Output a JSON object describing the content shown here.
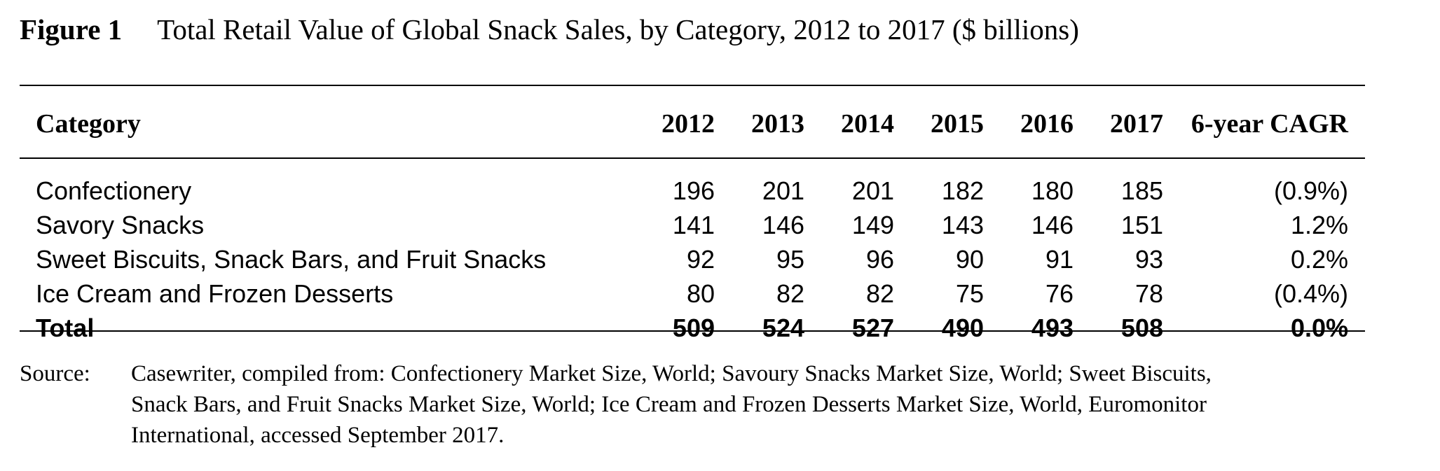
{
  "figure": {
    "label": "Figure 1",
    "title": "Total Retail Value of Global Snack Sales, by Category, 2012 to 2017 ($ billions)"
  },
  "table": {
    "headers": [
      "Category",
      "2012",
      "2013",
      "2014",
      "2015",
      "2016",
      "2017",
      "6-year CAGR"
    ],
    "rows": [
      {
        "category": "Confectionery",
        "values": [
          "196",
          "201",
          "201",
          "182",
          "180",
          "185"
        ],
        "cagr": "(0.9%)"
      },
      {
        "category": "Savory Snacks",
        "values": [
          "141",
          "146",
          "149",
          "143",
          "146",
          "151"
        ],
        "cagr": "1.2%"
      },
      {
        "category": "Sweet Biscuits, Snack Bars, and Fruit Snacks",
        "values": [
          "92",
          "95",
          "96",
          "90",
          "91",
          "93"
        ],
        "cagr": "0.2%"
      },
      {
        "category": "Ice Cream and Frozen Desserts",
        "values": [
          "80",
          "82",
          "82",
          "75",
          "76",
          "78"
        ],
        "cagr": "(0.4%)"
      }
    ],
    "total": {
      "category": "Total",
      "values": [
        "509",
        "524",
        "527",
        "490",
        "493",
        "508"
      ],
      "cagr": "0.0%"
    }
  },
  "source": {
    "label": "Source:",
    "lines": [
      "Casewriter, compiled from: Confectionery Market Size, World; Savoury Snacks Market Size, World; Sweet Biscuits,",
      "Snack Bars, and Fruit Snacks Market Size, World; Ice Cream and Frozen Desserts Market Size, World, Euromonitor",
      "International, accessed September 2017."
    ]
  }
}
